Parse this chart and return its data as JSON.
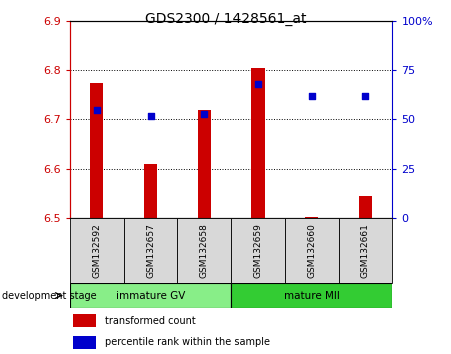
{
  "title": "GDS2300 / 1428561_at",
  "samples": [
    "GSM132592",
    "GSM132657",
    "GSM132658",
    "GSM132659",
    "GSM132660",
    "GSM132661"
  ],
  "bar_bottoms": [
    6.5,
    6.5,
    6.5,
    6.5,
    6.5,
    6.5
  ],
  "bar_tops": [
    6.775,
    6.61,
    6.72,
    6.805,
    6.502,
    6.545
  ],
  "percentile_ranks": [
    55,
    52,
    53,
    68,
    62,
    62
  ],
  "ylim": [
    6.5,
    6.9
  ],
  "yticks_left": [
    6.5,
    6.6,
    6.7,
    6.8,
    6.9
  ],
  "yticks_right": [
    0,
    25,
    50,
    75,
    100
  ],
  "yticks_right_labels": [
    "0",
    "25",
    "50",
    "75",
    "100%"
  ],
  "bar_color": "#cc0000",
  "dot_color": "#0000cc",
  "group1_label": "immature GV",
  "group2_label": "mature MII",
  "group1_color": "#88ee88",
  "group2_color": "#33cc33",
  "stage_label": "development stage",
  "legend1": "transformed count",
  "legend2": "percentile rank within the sample",
  "bg_color": "#d8d8d8",
  "plot_bg": "#ffffff",
  "left_tick_color": "#cc0000",
  "right_tick_color": "#0000cc"
}
